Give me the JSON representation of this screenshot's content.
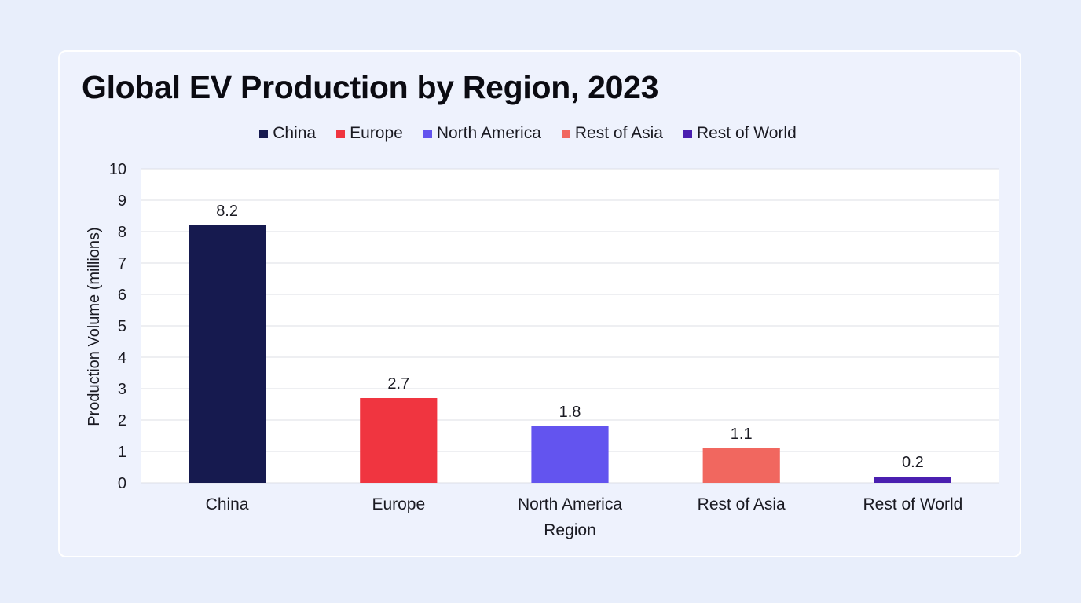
{
  "chart_data": {
    "type": "bar",
    "title": "Global EV Production by Region, 2023",
    "xlabel": "Region",
    "ylabel": "Production Volume (millions)",
    "categories": [
      "China",
      "Europe",
      "North America",
      "Rest of Asia",
      "Rest of World"
    ],
    "values": [
      8.2,
      2.7,
      1.8,
      1.1,
      0.2
    ],
    "value_labels": [
      "8.2",
      "2.7",
      "1.8",
      "1.1",
      "0.2"
    ],
    "colors": [
      "#161a4f",
      "#f03540",
      "#6354ef",
      "#f1675f",
      "#4a1fb0"
    ],
    "ylim": [
      0,
      10
    ],
    "yticks": [
      "0",
      "1",
      "2",
      "3",
      "4",
      "5",
      "6",
      "7",
      "8",
      "9",
      "10"
    ],
    "grid": true,
    "legend_position": "top-center",
    "legend": [
      "China",
      "Europe",
      "North America",
      "Rest of Asia",
      "Rest of World"
    ]
  }
}
